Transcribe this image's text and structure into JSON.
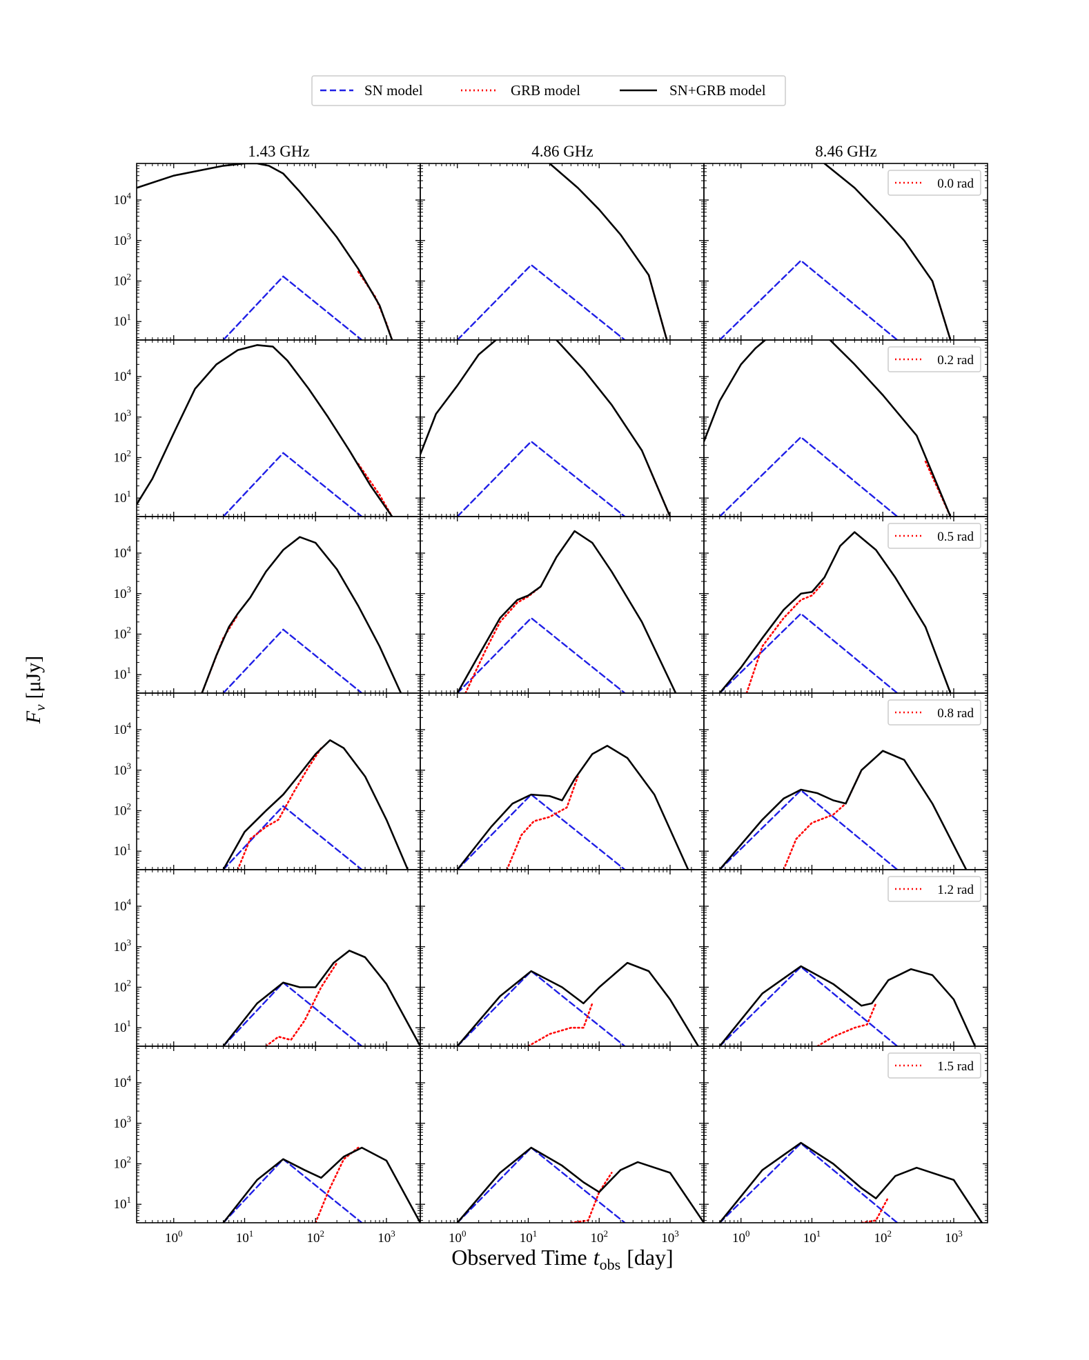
{
  "chart_data": {
    "type": "line",
    "title": "",
    "xlabel": "Observed Time",
    "xlabel_var": "t",
    "xlabel_sub": "obs",
    "xlabel_unit": "[day]",
    "ylabel_var": "F",
    "ylabel_sub": "ν",
    "ylabel_unit": "[μJy]",
    "x_scale": "log",
    "y_scale": "log",
    "xlim": [
      0.3,
      3000
    ],
    "ylim": [
      3.5,
      80000
    ],
    "x_ticks": [
      {
        "value": 1,
        "base": "10",
        "exp": "0"
      },
      {
        "value": 10,
        "base": "10",
        "exp": "1"
      },
      {
        "value": 100,
        "base": "10",
        "exp": "2"
      },
      {
        "value": 1000,
        "base": "10",
        "exp": "3"
      }
    ],
    "y_ticks": [
      {
        "value": 10,
        "base": "10",
        "exp": "1"
      },
      {
        "value": 100,
        "base": "10",
        "exp": "2"
      },
      {
        "value": 1000,
        "base": "10",
        "exp": "3"
      },
      {
        "value": 10000,
        "base": "10",
        "exp": "4"
      }
    ],
    "columns": [
      "1.43 GHz",
      "4.86 GHz",
      "8.46 GHz"
    ],
    "rows": [
      "0.0 rad",
      "0.2 rad",
      "0.5 rad",
      "0.8 rad",
      "1.2 rad",
      "1.5 rad"
    ],
    "legend": [
      {
        "label": "SN model",
        "color": "#1f1fe6",
        "style": "dashed"
      },
      {
        "label": "GRB model",
        "color": "#ff0000",
        "style": "dotted"
      },
      {
        "label": "SN+GRB model",
        "color": "#000000",
        "style": "solid"
      }
    ],
    "sn_model": [
      {
        "frequency": "1.43 GHz",
        "t": [
          5,
          35,
          450
        ],
        "flux": [
          3.5,
          130,
          3.5
        ]
      },
      {
        "frequency": "4.86 GHz",
        "t": [
          1.0,
          11,
          230
        ],
        "flux": [
          3.5,
          250,
          3.5
        ]
      },
      {
        "frequency": "8.46 GHz",
        "t": [
          0.5,
          7,
          160
        ],
        "flux": [
          3.5,
          320,
          3.5
        ]
      }
    ],
    "panels": [
      {
        "angle": "0.0 rad",
        "frequency": "1.43 GHz",
        "total": {
          "t": [
            0.3,
            1,
            5,
            10,
            15,
            22,
            35,
            60,
            100,
            200,
            400,
            800,
            1200
          ],
          "flux": [
            20000,
            40000,
            70000,
            80000,
            80000,
            70000,
            45000,
            16000,
            5500,
            1200,
            200,
            25,
            3.5
          ]
        },
        "grb_extra": {
          "t": [
            400,
            700,
            1000,
            1200
          ],
          "flux": [
            170,
            40,
            9,
            3.5
          ]
        }
      },
      {
        "angle": "0.0 rad",
        "frequency": "4.86 GHz",
        "total": {
          "t": [
            20,
            50,
            100,
            200,
            500,
            900
          ],
          "flux": [
            80000,
            20000,
            5800,
            1400,
            140,
            3.5
          ]
        },
        "grb_extra": {
          "t": [
            500,
            900
          ],
          "flux": [
            140,
            3.5
          ]
        }
      },
      {
        "angle": "0.0 rad",
        "frequency": "8.46 GHz",
        "total": {
          "t": [
            15,
            40,
            100,
            200,
            500,
            900
          ],
          "flux": [
            80000,
            20000,
            3800,
            1000,
            100,
            3.5
          ]
        },
        "grb_extra": {
          "t": [
            500,
            900
          ],
          "flux": [
            100,
            3.5
          ]
        }
      },
      {
        "angle": "0.2 rad",
        "frequency": "1.43 GHz",
        "total": {
          "t": [
            0.3,
            0.5,
            1,
            2,
            4,
            8,
            15,
            25,
            40,
            80,
            150,
            300,
            600,
            1200
          ],
          "flux": [
            7,
            30,
            400,
            5000,
            20000,
            45000,
            60000,
            55000,
            25000,
            5000,
            1000,
            150,
            20,
            3.5
          ]
        },
        "grb_extra": {
          "t": [
            400,
            800,
            1200
          ],
          "flux": [
            70,
            12,
            3.5
          ]
        }
      },
      {
        "angle": "0.2 rad",
        "frequency": "4.86 GHz",
        "total": {
          "t": [
            0.3,
            0.5,
            1,
            2,
            3.5
          ],
          "flux": [
            120,
            1200,
            6000,
            35000,
            80000
          ]
        },
        "total_b": {
          "t": [
            25,
            60,
            150,
            400,
            1000
          ],
          "flux": [
            80000,
            15000,
            2000,
            150,
            3.5
          ]
        },
        "grb_extra": {
          "t": [
            500,
            1000
          ],
          "flux": [
            60,
            3.5
          ]
        }
      },
      {
        "angle": "0.2 rad",
        "frequency": "8.46 GHz",
        "total": {
          "t": [
            0.3,
            0.5,
            1,
            1.6,
            2.2
          ],
          "flux": [
            250,
            2500,
            20000,
            50000,
            80000
          ]
        },
        "total_b": {
          "t": [
            18,
            40,
            100,
            300,
            900
          ],
          "flux": [
            80000,
            20000,
            3500,
            350,
            3.5
          ]
        },
        "grb_extra": {
          "t": [
            400,
            900
          ],
          "flux": [
            80,
            3.5
          ]
        }
      },
      {
        "angle": "0.5 rad",
        "frequency": "1.43 GHz",
        "total": {
          "t": [
            2.5,
            4,
            6,
            8,
            12,
            20,
            35,
            60,
            100,
            200,
            400,
            800,
            1600
          ],
          "flux": [
            3.5,
            30,
            150,
            320,
            800,
            3500,
            12000,
            25000,
            18000,
            4000,
            500,
            50,
            3.5
          ]
        },
        "grb_extra": {
          "t": [
            2.5,
            5,
            8
          ],
          "flux": [
            3.5,
            80,
            300
          ]
        }
      },
      {
        "angle": "0.5 rad",
        "frequency": "4.86 GHz",
        "total": {
          "t": [
            1,
            2,
            4,
            7,
            10,
            15,
            25,
            45,
            80,
            150,
            400,
            1200
          ],
          "flux": [
            3.5,
            30,
            250,
            700,
            900,
            1500,
            8000,
            35000,
            18000,
            3500,
            200,
            3.5
          ]
        },
        "grb_extra": {
          "t": [
            1.3,
            2.5,
            4,
            7,
            10,
            15
          ],
          "flux": [
            3.5,
            40,
            200,
            600,
            850,
            1500
          ]
        }
      },
      {
        "angle": "0.5 rad",
        "frequency": "8.46 GHz",
        "total": {
          "t": [
            0.5,
            1,
            2,
            4,
            7,
            10,
            15,
            25,
            40,
            80,
            150,
            400,
            900
          ],
          "flux": [
            3.5,
            15,
            80,
            400,
            1000,
            1100,
            2500,
            15000,
            33000,
            12000,
            2500,
            150,
            3.5
          ]
        },
        "grb_extra": {
          "t": [
            1.2,
            2,
            4,
            7,
            10,
            15
          ],
          "flux": [
            3.5,
            50,
            250,
            700,
            900,
            2000
          ]
        }
      },
      {
        "angle": "0.8 rad",
        "frequency": "1.43 GHz",
        "total": {
          "t": [
            5,
            10,
            20,
            35,
            60,
            100,
            160,
            250,
            500,
            1000,
            2000
          ],
          "flux": [
            3.5,
            30,
            100,
            250,
            800,
            2500,
            5500,
            3500,
            700,
            60,
            3.5
          ]
        },
        "grb_extra": {
          "t": [
            8,
            12,
            20,
            30,
            50,
            80,
            120
          ],
          "flux": [
            3.5,
            20,
            40,
            60,
            300,
            1200,
            3500
          ]
        }
      },
      {
        "angle": "0.8 rad",
        "frequency": "4.86 GHz",
        "total": {
          "t": [
            1,
            3,
            6,
            11,
            20,
            30,
            45,
            80,
            130,
            250,
            600,
            1800
          ],
          "flux": [
            3.5,
            40,
            150,
            250,
            230,
            180,
            600,
            2500,
            4000,
            2000,
            250,
            3.5
          ]
        },
        "grb_extra": {
          "t": [
            5,
            8,
            12,
            20,
            35,
            50
          ],
          "flux": [
            3.5,
            25,
            55,
            70,
            120,
            700
          ]
        }
      },
      {
        "angle": "0.8 rad",
        "frequency": "8.46 GHz",
        "total": {
          "t": [
            0.5,
            2,
            4,
            7,
            12,
            20,
            30,
            50,
            100,
            200,
            500,
            1500
          ],
          "flux": [
            3.5,
            60,
            200,
            330,
            270,
            180,
            150,
            1000,
            3000,
            1800,
            150,
            3.5
          ]
        },
        "grb_extra": {
          "t": [
            4,
            6,
            10,
            20,
            30,
            50
          ],
          "flux": [
            3.5,
            20,
            50,
            80,
            150,
            1000
          ]
        }
      },
      {
        "angle": "1.2 rad",
        "frequency": "1.43 GHz",
        "total": {
          "t": [
            5,
            15,
            35,
            60,
            100,
            180,
            300,
            500,
            1000,
            3000
          ],
          "flux": [
            3.5,
            40,
            130,
            100,
            100,
            400,
            800,
            550,
            120,
            3.5
          ]
        },
        "grb_extra": {
          "t": [
            20,
            30,
            45,
            70,
            120,
            200
          ],
          "flux": [
            3.5,
            6,
            5,
            15,
            100,
            400
          ]
        }
      },
      {
        "angle": "1.2 rad",
        "frequency": "4.86 GHz",
        "total": {
          "t": [
            1,
            4,
            11,
            30,
            60,
            100,
            250,
            500,
            1000,
            2500
          ],
          "flux": [
            3.5,
            60,
            250,
            100,
            40,
            100,
            400,
            250,
            50,
            3.5
          ]
        },
        "grb_extra": {
          "t": [
            10,
            20,
            40,
            60,
            80
          ],
          "flux": [
            3.5,
            7,
            10,
            10,
            40
          ]
        }
      },
      {
        "angle": "1.2 rad",
        "frequency": "8.46 GHz",
        "total": {
          "t": [
            0.5,
            2,
            7,
            20,
            50,
            70,
            120,
            250,
            500,
            1000,
            2000
          ],
          "flux": [
            3.5,
            70,
            330,
            120,
            35,
            40,
            150,
            280,
            200,
            50,
            3.5
          ]
        },
        "grb_extra": {
          "t": [
            12,
            20,
            40,
            60,
            80
          ],
          "flux": [
            3.5,
            6,
            10,
            12,
            40
          ]
        }
      },
      {
        "angle": "1.5 rad",
        "frequency": "1.43 GHz",
        "total": {
          "t": [
            5,
            15,
            35,
            70,
            120,
            250,
            450,
            1000,
            3000
          ],
          "flux": [
            3.5,
            40,
            130,
            70,
            45,
            150,
            250,
            120,
            3.5
          ]
        },
        "grb_extra": {
          "t": [
            100,
            150,
            250,
            400
          ],
          "flux": [
            3.5,
            20,
            130,
            250
          ]
        }
      },
      {
        "angle": "1.5 rad",
        "frequency": "4.86 GHz",
        "total": {
          "t": [
            1,
            4,
            11,
            30,
            60,
            100,
            200,
            350,
            1000,
            3000
          ],
          "flux": [
            3.5,
            60,
            250,
            90,
            35,
            20,
            70,
            110,
            60,
            3.5
          ]
        },
        "grb_extra": {
          "t": [
            40,
            70,
            100,
            150
          ],
          "flux": [
            3.5,
            4,
            20,
            60
          ]
        }
      },
      {
        "angle": "1.5 rad",
        "frequency": "8.46 GHz",
        "total": {
          "t": [
            0.5,
            2,
            7,
            20,
            50,
            80,
            150,
            300,
            1000,
            2500
          ],
          "flux": [
            3.5,
            70,
            330,
            100,
            25,
            14,
            50,
            80,
            40,
            3.5
          ]
        },
        "grb_extra": {
          "t": [
            50,
            80,
            120
          ],
          "flux": [
            3.5,
            4,
            15
          ]
        }
      }
    ]
  }
}
